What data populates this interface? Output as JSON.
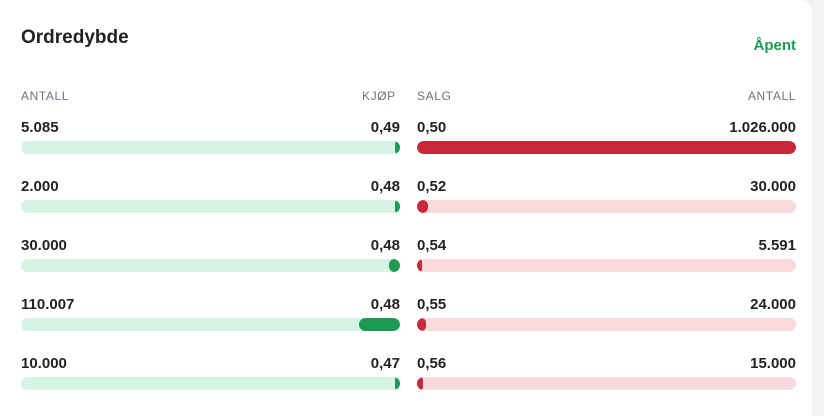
{
  "header": {
    "title": "Ordredybde",
    "status": "Åpent"
  },
  "columns": {
    "buy_qty": "ANTALL",
    "buy_price": "KJØP",
    "sell_price": "SALG",
    "sell_qty": "ANTALL"
  },
  "colors": {
    "buy_fill": "#1e9a55",
    "buy_track": "#d6f4e4",
    "sell_fill": "#c8293a",
    "sell_track": "#f8dadd",
    "status": "#1e9a55"
  },
  "bids": [
    {
      "qty": "5.085",
      "price": "0,49",
      "level": 0.005
    },
    {
      "qty": "2.000",
      "price": "0,48",
      "level": 0.002
    },
    {
      "qty": "30.000",
      "price": "0,48",
      "level": 0.029
    },
    {
      "qty": "110.007",
      "price": "0,48",
      "level": 0.107
    },
    {
      "qty": "10.000",
      "price": "0,47",
      "level": 0.01
    }
  ],
  "asks": [
    {
      "price": "0,50",
      "qty": "1.026.000",
      "level": 1.0
    },
    {
      "price": "0,52",
      "qty": "30.000",
      "level": 0.029
    },
    {
      "price": "0,54",
      "qty": "5.591",
      "level": 0.005
    },
    {
      "price": "0,55",
      "qty": "24.000",
      "level": 0.023
    },
    {
      "price": "0,56",
      "qty": "15.000",
      "level": 0.015
    }
  ]
}
